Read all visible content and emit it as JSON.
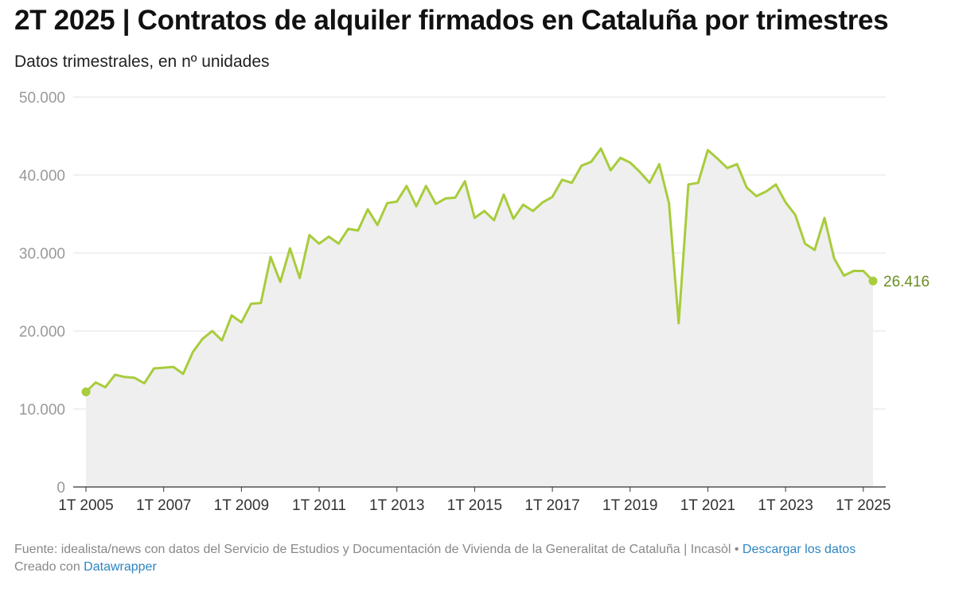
{
  "title": "2T 2025 | Contratos de alquiler firmados en Cataluña por trimestres",
  "subtitle": "Datos trimestrales, en nº unidades",
  "footer": {
    "source": "Fuente: idealista/news con datos del Servicio de Estudios y Documentación de Vivienda de la Generalitat de Cataluña | Incasòl •",
    "download_link": "Descargar los datos",
    "created_with": "Creado con",
    "tool_link": "Datawrapper"
  },
  "colors": {
    "line": "#a8cc3c",
    "area": "#efefef",
    "grid": "#e2e2e2",
    "axis_text": "#999999",
    "end_label": "#6b8e23"
  },
  "chart_data": {
    "type": "area",
    "title": "2T 2025 | Contratos de alquiler firmados en Cataluña por trimestres",
    "ylabel": "nº unidades",
    "xlabel": "",
    "ylim": [
      0,
      50000
    ],
    "yticks": [
      0,
      10000,
      20000,
      30000,
      40000,
      50000
    ],
    "ytick_labels": [
      "0",
      "10.000",
      "20.000",
      "30.000",
      "40.000",
      "50.000"
    ],
    "xticks": [
      "1T 2005",
      "1T 2007",
      "1T 2009",
      "1T 2011",
      "1T 2013",
      "1T 2015",
      "1T 2017",
      "1T 2019",
      "1T 2021",
      "1T 2023",
      "1T 2025"
    ],
    "x_start": "1T 2005",
    "x_end": "2T 2025",
    "end_value_label": "26.416",
    "series": [
      {
        "name": "Contratos de alquiler firmados",
        "values": [
          12200,
          13400,
          12800,
          14400,
          14100,
          14000,
          13300,
          15200,
          15300,
          15400,
          14500,
          17300,
          19000,
          20000,
          18800,
          22000,
          21100,
          23500,
          23600,
          29500,
          26300,
          30600,
          26800,
          32300,
          31200,
          32100,
          31200,
          33100,
          32900,
          35600,
          33600,
          36400,
          36600,
          38600,
          36000,
          38600,
          36300,
          37000,
          37100,
          39200,
          34500,
          35400,
          34200,
          37500,
          34400,
          36200,
          35400,
          36500,
          37200,
          39400,
          39000,
          41200,
          41700,
          43400,
          40600,
          42200,
          41600,
          40400,
          39000,
          41400,
          36400,
          21000,
          38800,
          39000,
          43200,
          42100,
          40900,
          41400,
          38400,
          37300,
          37900,
          38800,
          36500,
          34900,
          31200,
          30400,
          34500,
          29300,
          27100,
          27700,
          27700,
          26416
        ]
      }
    ]
  }
}
